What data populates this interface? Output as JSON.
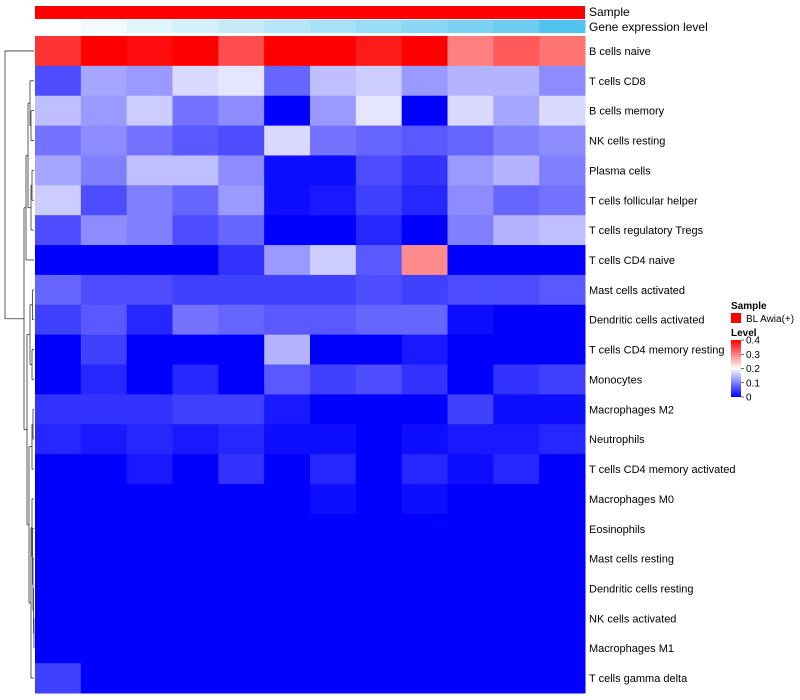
{
  "chart_data": {
    "type": "heatmap",
    "title": "",
    "xlabel": "",
    "ylabel": "",
    "annotations": {
      "sample_label": "Sample",
      "gene_label": "Gene expression level"
    },
    "columns": [
      "",
      "",
      "",
      "",
      "",
      "",
      "",
      "",
      "",
      "",
      "",
      ""
    ],
    "gene_expression_level": [
      0.0,
      0.08,
      0.17,
      0.25,
      0.33,
      0.42,
      0.5,
      0.58,
      0.67,
      0.75,
      0.83,
      1.0
    ],
    "rows": [
      "B cells naive",
      "T cells CD8",
      "B cells memory",
      "NK cells resting",
      "Plasma cells",
      "T cells follicular helper",
      "T cells regulatory  Tregs",
      "T cells CD4 naive",
      "Mast cells activated",
      "Dendritic cells activated",
      "T cells CD4 memory resting",
      "Monocytes",
      "Macrophages M2",
      "Neutrophils",
      "T cells CD4 memory activated",
      "Macrophages M0",
      "Eosinophils",
      "Mast cells resting",
      "Dendritic cells resting",
      "NK cells activated",
      "Macrophages M1",
      "T cells gamma delta"
    ],
    "values": [
      [
        0.36,
        0.43,
        0.39,
        0.42,
        0.34,
        0.43,
        0.43,
        0.38,
        0.41,
        0.3,
        0.33,
        0.31
      ],
      [
        0.06,
        0.13,
        0.12,
        0.17,
        0.18,
        0.08,
        0.15,
        0.16,
        0.12,
        0.14,
        0.14,
        0.11
      ],
      [
        0.15,
        0.12,
        0.16,
        0.09,
        0.11,
        0.0,
        0.12,
        0.18,
        0.0,
        0.17,
        0.13,
        0.17
      ],
      [
        0.09,
        0.11,
        0.09,
        0.07,
        0.06,
        0.17,
        0.09,
        0.08,
        0.07,
        0.08,
        0.1,
        0.11
      ],
      [
        0.13,
        0.1,
        0.15,
        0.15,
        0.11,
        0.01,
        0.01,
        0.06,
        0.04,
        0.12,
        0.14,
        0.1
      ],
      [
        0.16,
        0.06,
        0.1,
        0.08,
        0.12,
        0.01,
        0.02,
        0.05,
        0.03,
        0.11,
        0.08,
        0.09
      ],
      [
        0.06,
        0.11,
        0.1,
        0.06,
        0.08,
        0.0,
        0.0,
        0.03,
        0.0,
        0.1,
        0.14,
        0.15
      ],
      [
        0.0,
        0.0,
        0.0,
        0.0,
        0.04,
        0.12,
        0.16,
        0.07,
        0.29,
        0.0,
        0.0,
        0.0
      ],
      [
        0.08,
        0.06,
        0.06,
        0.05,
        0.05,
        0.05,
        0.05,
        0.06,
        0.05,
        0.06,
        0.06,
        0.07
      ],
      [
        0.05,
        0.07,
        0.03,
        0.09,
        0.08,
        0.07,
        0.07,
        0.08,
        0.08,
        0.01,
        0.0,
        0.0
      ],
      [
        0.0,
        0.05,
        0.0,
        0.0,
        0.0,
        0.14,
        0.0,
        0.0,
        0.02,
        0.0,
        0.0,
        0.0
      ],
      [
        0.0,
        0.03,
        0.0,
        0.03,
        0.0,
        0.07,
        0.05,
        0.06,
        0.04,
        0.0,
        0.04,
        0.05
      ],
      [
        0.04,
        0.04,
        0.04,
        0.05,
        0.05,
        0.02,
        0.0,
        0.0,
        0.0,
        0.05,
        0.01,
        0.01
      ],
      [
        0.03,
        0.02,
        0.03,
        0.02,
        0.03,
        0.01,
        0.01,
        0.0,
        0.01,
        0.02,
        0.02,
        0.03
      ],
      [
        0.0,
        0.0,
        0.02,
        0.0,
        0.04,
        0.0,
        0.03,
        0.0,
        0.03,
        0.01,
        0.03,
        0.0
      ],
      [
        0.0,
        0.0,
        0.0,
        0.0,
        0.0,
        0.0,
        0.01,
        0.0,
        0.01,
        0.0,
        0.0,
        0.0
      ],
      [
        0.0,
        0.0,
        0.0,
        0.0,
        0.0,
        0.0,
        0.0,
        0.0,
        0.0,
        0.0,
        0.0,
        0.0
      ],
      [
        0.0,
        0.0,
        0.0,
        0.0,
        0.0,
        0.0,
        0.0,
        0.0,
        0.0,
        0.0,
        0.0,
        0.0
      ],
      [
        0.0,
        0.0,
        0.0,
        0.0,
        0.0,
        0.0,
        0.0,
        0.0,
        0.0,
        0.0,
        0.0,
        0.0
      ],
      [
        0.0,
        0.0,
        0.0,
        0.0,
        0.0,
        0.0,
        0.0,
        0.0,
        0.0,
        0.0,
        0.0,
        0.0
      ],
      [
        0.0,
        0.0,
        0.0,
        0.0,
        0.0,
        0.0,
        0.0,
        0.0,
        0.0,
        0.0,
        0.0,
        0.0
      ],
      [
        0.05,
        0.0,
        0.0,
        0.0,
        0.0,
        0.0,
        0.0,
        0.0,
        0.0,
        0.0,
        0.0,
        0.0
      ]
    ],
    "value_range": [
      0,
      0.4
    ],
    "colors": {
      "low": "#0000ff",
      "mid": "#ffffff",
      "high": "#ff0000",
      "midpoint": 0.2
    },
    "annotation_colors": {
      "sample": "#ff0000",
      "gene_low": "#ffffff",
      "gene_high": "#4fc3ee"
    },
    "legend": {
      "position": "right",
      "sample_title": "Sample",
      "sample_entry": "BL Awia(+)",
      "level_title": "Level",
      "ticks": [
        "0.4",
        "0.3",
        "0.2",
        "0.1",
        "0"
      ],
      "tick_values": [
        0.4,
        0.3,
        0.2,
        0.1,
        0
      ]
    }
  }
}
